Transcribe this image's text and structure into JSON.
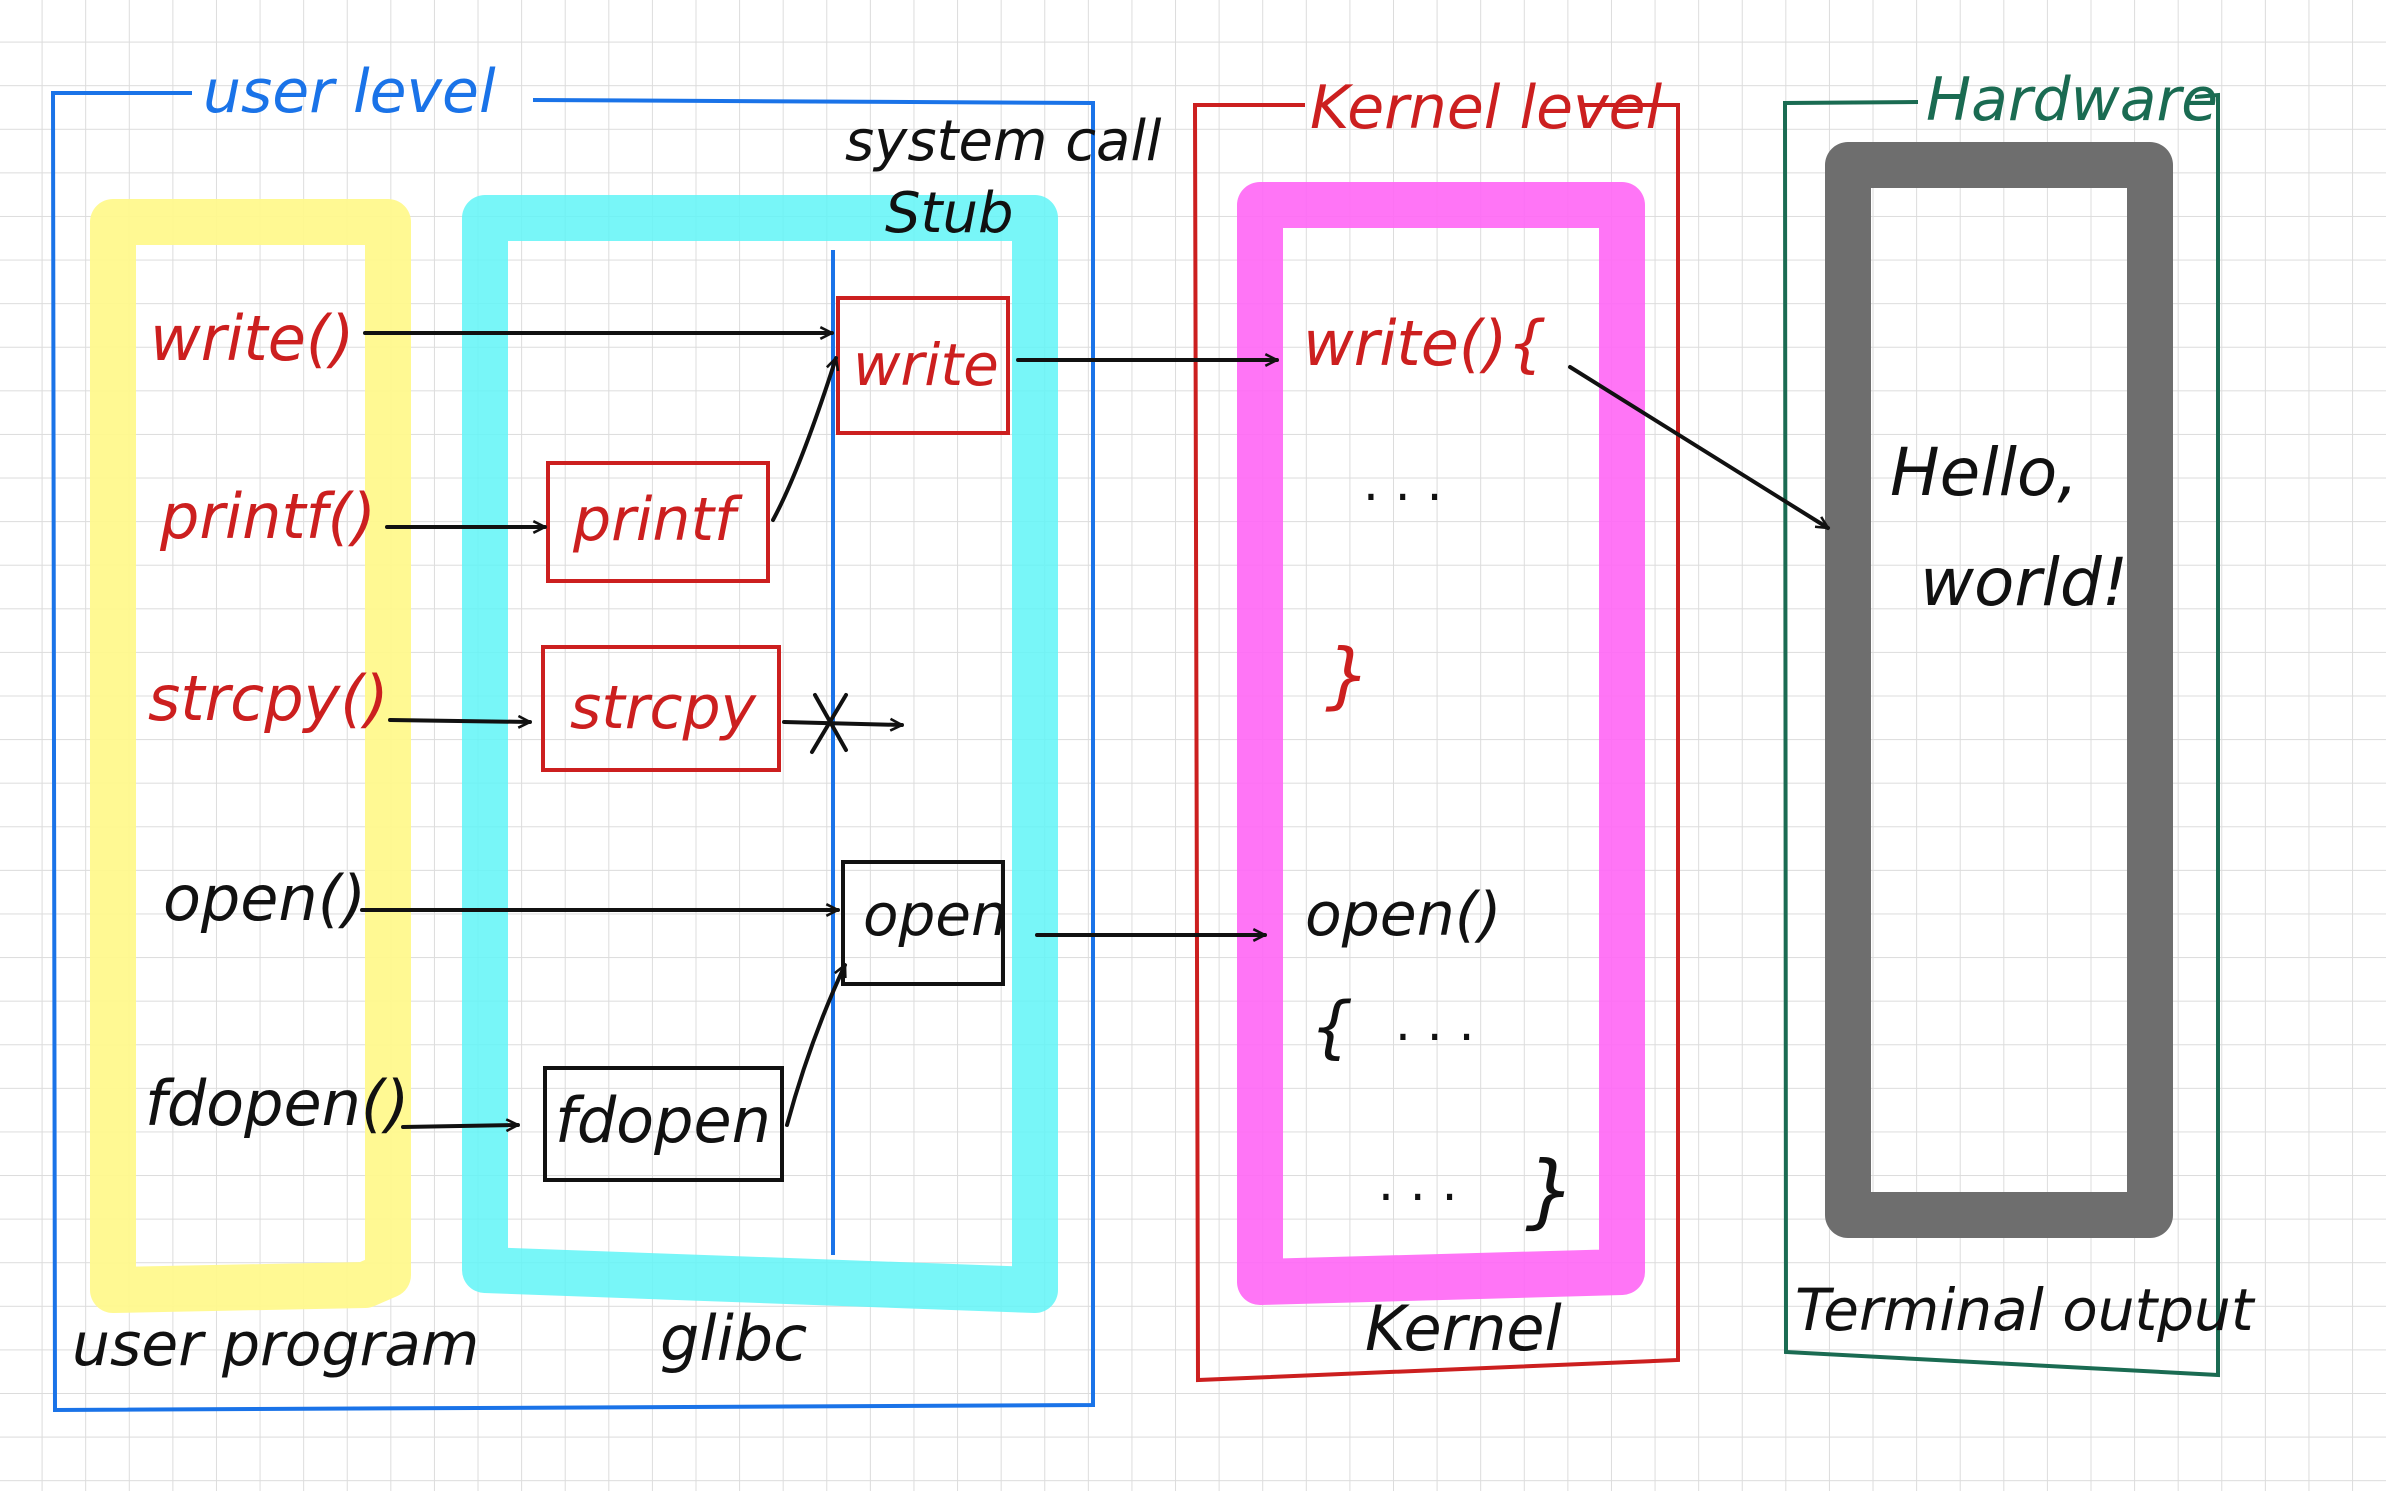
{
  "colors": {
    "blue": "#1a73e8",
    "red": "#cc1f1f",
    "green": "#1a6b52",
    "black": "#111111",
    "yellow": "#fff98a",
    "cyan": "#60f5f7",
    "magenta": "#ff66f5",
    "gray": "#6e6e6e"
  },
  "sections": {
    "user_level": "user level",
    "kernel_level": "Kernel level",
    "hardware": "Hardware"
  },
  "stub": {
    "line1": "system call",
    "line2": "Stub"
  },
  "bottom_labels": {
    "user_program": "user program",
    "glibc": "glibc",
    "kernel": "Kernel",
    "terminal": "Terminal output"
  },
  "user_calls": {
    "write": "write()",
    "printf": "printf()",
    "strcpy": "strcpy()",
    "open": "open()",
    "fdopen": "fdopen()"
  },
  "glibc_boxes": {
    "printf": "printf",
    "strcpy": "strcpy",
    "fdopen": "fdopen"
  },
  "stub_boxes": {
    "write": "write",
    "open": "open"
  },
  "kernel": {
    "write_header": "write(){",
    "write_dots": ". . .",
    "write_close": "}",
    "open_header": "open()",
    "open_brace": "{",
    "open_dots1": ". . .",
    "open_dots2": ". . .",
    "open_close": "}"
  },
  "terminal": {
    "line1": "Hello,",
    "line2": "world!"
  }
}
